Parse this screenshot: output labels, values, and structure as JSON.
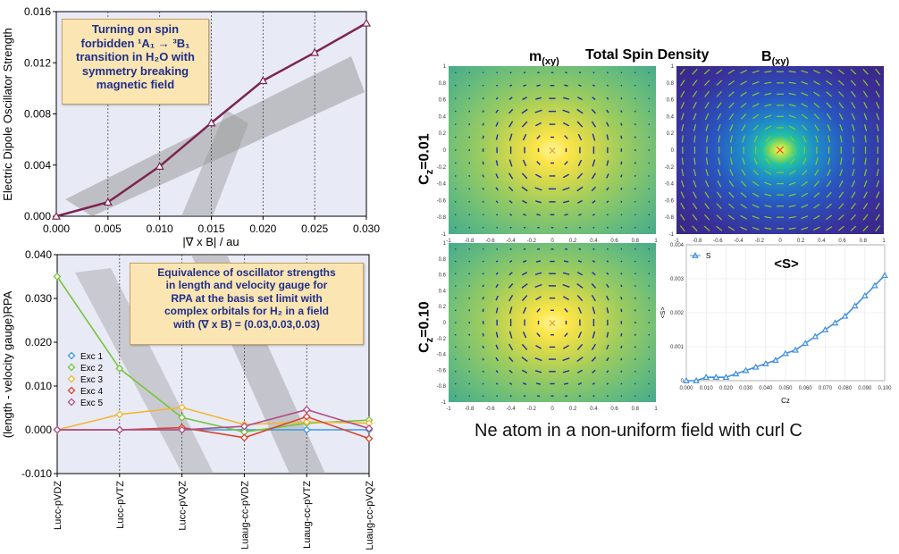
{
  "chart_data": [
    {
      "type": "line",
      "xlabel": "|∇ x B| / au",
      "ylabel": "Electric Dipole Oscillator Strength",
      "x": [
        0.0,
        0.005,
        0.01,
        0.015,
        0.02,
        0.025,
        0.03
      ],
      "y": [
        0.0,
        0.0011,
        0.0039,
        0.0073,
        0.0106,
        0.0128,
        0.0151
      ],
      "xticks": [
        "0.000",
        "0.005",
        "0.010",
        "0.015",
        "0.020",
        "0.025",
        "0.030"
      ],
      "yticks": [
        "0.000",
        "0.004",
        "0.008",
        "0.012",
        "0.016"
      ],
      "xlim": [
        0,
        0.03
      ],
      "ylim": [
        0,
        0.016
      ],
      "color": "#7d2450",
      "annotation": [
        "Turning on spin",
        "forbidden ¹A₁ → ³B₁",
        "transition in H₂O with",
        "symmetry breaking",
        "magnetic field"
      ]
    },
    {
      "type": "line",
      "ylabel": "(length - velocity gauge)RPA",
      "categories": [
        "Lucc-pVDZ",
        "Lucc-pVTZ",
        "Lucc-pVQZ",
        "Luaug-cc-pVDZ",
        "Luaug-cc-pVTZ",
        "Luaug-cc-pVQZ"
      ],
      "yticks": [
        "-0.010",
        "0.000",
        "0.010",
        "0.020",
        "0.030",
        "0.040"
      ],
      "ylim": [
        -0.01,
        0.04
      ],
      "legend": "left",
      "series": [
        {
          "name": "Exc 1",
          "color": "#3d9be0",
          "values": [
            0.0,
            0.0,
            0.0,
            0.0,
            0.0,
            0.0
          ]
        },
        {
          "name": "Exc 2",
          "color": "#77c43c",
          "values": [
            0.035,
            0.014,
            0.0028,
            -0.0005,
            0.0015,
            0.0022
          ]
        },
        {
          "name": "Exc 3",
          "color": "#f2b632",
          "values": [
            0.0,
            0.0035,
            0.0051,
            0.0012,
            0.0018,
            0.0015
          ]
        },
        {
          "name": "Exc 4",
          "color": "#d8442c",
          "values": [
            0.0,
            0.0,
            0.0005,
            -0.0018,
            0.003,
            -0.002
          ]
        },
        {
          "name": "Exc 5",
          "color": "#b24d86",
          "values": [
            0.0,
            0.0,
            0.0,
            0.0008,
            0.0046,
            0.0003
          ]
        }
      ],
      "annotation": [
        "Equivalence of oscillator strengths",
        "in length and velocity gauge for",
        "RPA at the basis set limit with",
        "complex orbitals for H₂ in a field",
        "with (∇ x B) = (0.03,0.03,0.03)"
      ]
    },
    {
      "type": "line",
      "title": "<S>",
      "xlabel": "Cz",
      "ylabel": "<S>",
      "legend": "top-left",
      "xticks": [
        "0.000",
        "0.010",
        "0.020",
        "0.030",
        "0.040",
        "0.050",
        "0.060",
        "0.070",
        "0.080",
        "0.090",
        "0.100"
      ],
      "yticks": [
        "0",
        "0.001",
        "0.002",
        "0.003",
        "0.004"
      ],
      "xlim": [
        0,
        0.1
      ],
      "ylim": [
        0,
        0.004
      ],
      "series": [
        {
          "name": "S",
          "color": "#3f8fe0",
          "x": [
            0.0,
            0.005,
            0.01,
            0.015,
            0.02,
            0.025,
            0.03,
            0.035,
            0.04,
            0.045,
            0.05,
            0.055,
            0.06,
            0.065,
            0.07,
            0.075,
            0.08,
            0.085,
            0.09,
            0.095,
            0.1
          ],
          "values": [
            0.0,
            0.0,
            0.0001,
            0.0001,
            0.0001,
            0.0002,
            0.0003,
            0.0004,
            0.0005,
            0.0006,
            0.0008,
            0.0009,
            0.0011,
            0.0013,
            0.0015,
            0.0017,
            0.0019,
            0.0022,
            0.0025,
            0.0028,
            0.0031
          ]
        }
      ]
    }
  ],
  "spin_panel": {
    "title": "Total Spin Density",
    "col_m": "m",
    "col_m_sub": "(xy)",
    "col_b": "B",
    "col_b_sub": "(xy)",
    "row1_main": "C",
    "row1_sub": "z",
    "row1_val": "=0.01",
    "row2_main": "C",
    "row2_sub": "z",
    "row2_val": "=0.10",
    "map_ticks": [
      "-1",
      "-0.8",
      "-0.6",
      "-0.4",
      "-0.2",
      "0",
      "0.2",
      "0.4",
      "0.6",
      "0.8",
      "1"
    ],
    "caption": "Ne atom in a non-uniform field with curl C"
  }
}
